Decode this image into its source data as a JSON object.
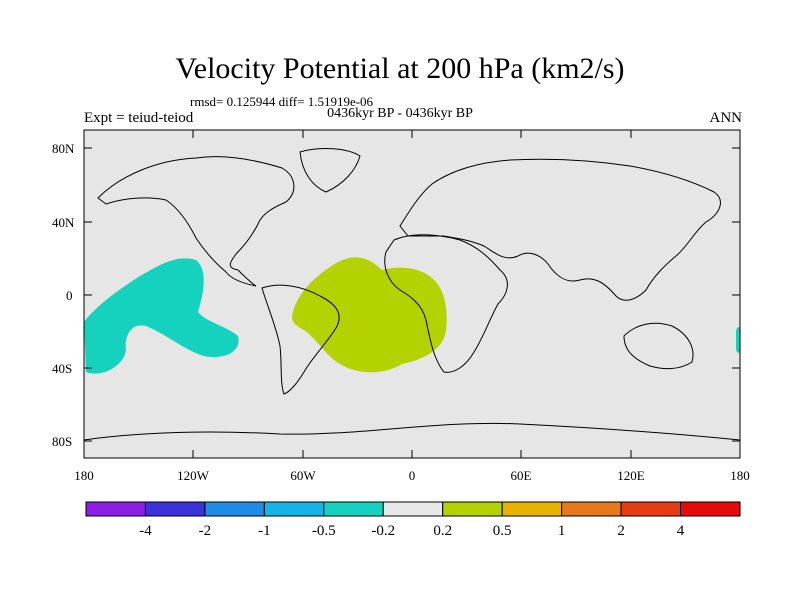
{
  "title": "Velocity Potential at 200 hPa (km2/s)",
  "stats": "rmsd= 0.125944 diff= 1.51919e-06",
  "subtitle": "0436kyr BP - 0436kyr BP",
  "left_label": "Expt = teiud-teiod",
  "right_label": "ANN",
  "lat_ticks": [
    "80N",
    "40N",
    "0",
    "40S",
    "80S"
  ],
  "lon_ticks": [
    "180",
    "120W",
    "60W",
    "0",
    "60E",
    "120E",
    "180"
  ],
  "colorbar": {
    "colors": [
      "#8c1ee6",
      "#3c32dc",
      "#1e8ce6",
      "#14b4e6",
      "#14d2be",
      "#e8e8e8",
      "#b4d200",
      "#e6b400",
      "#e6781e",
      "#e63c14",
      "#e60a0a"
    ],
    "labels": [
      "-4",
      "-2",
      "-1",
      "-0.5",
      "-0.2",
      "0.2",
      "0.5",
      "1",
      "2",
      "4"
    ]
  },
  "regions": [
    {
      "name": "negative-anomaly-pacific",
      "color": "#14d2be",
      "range": "-0.5 to -0.2"
    },
    {
      "name": "positive-anomaly-atlantic",
      "color": "#b4d200",
      "range": "0.2 to 0.5"
    }
  ]
}
